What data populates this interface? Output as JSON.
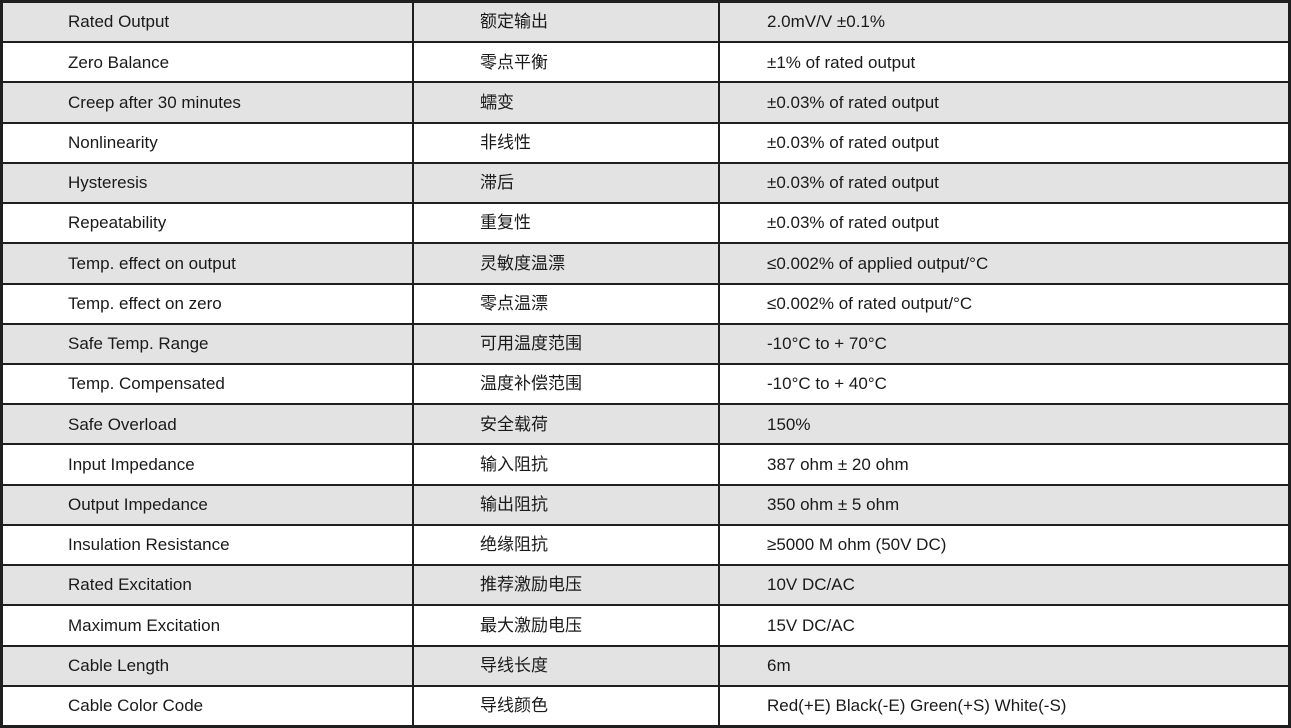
{
  "colors": {
    "row_alt": "#e3e3e3",
    "row_base": "#ffffff",
    "border": "#1f1f1f",
    "text": "#1a1a1a"
  },
  "table": {
    "rows": [
      {
        "en": "Rated Output",
        "zh": "额定输出",
        "value": "2.0mV/V ±0.1%"
      },
      {
        "en": "Zero Balance",
        "zh": "零点平衡",
        "value": "±1% of rated output"
      },
      {
        "en": "Creep after 30 minutes",
        "zh": "蠕变",
        "value": "±0.03% of rated output"
      },
      {
        "en": "Nonlinearity",
        "zh": "非线性",
        "value": "±0.03% of rated output"
      },
      {
        "en": "Hysteresis",
        "zh": "滞后",
        "value": "±0.03% of rated output"
      },
      {
        "en": "Repeatability",
        "zh": "重复性",
        "value": "±0.03% of rated output"
      },
      {
        "en": "Temp. effect on output",
        "zh": "灵敏度温漂",
        "value": "≤0.002% of applied output/°C"
      },
      {
        "en": "Temp. effect on zero",
        "zh": "零点温漂",
        "value": "≤0.002% of rated output/°C"
      },
      {
        "en": "Safe Temp. Range",
        "zh": "可用温度范围",
        "value": "-10°C to + 70°C"
      },
      {
        "en": "Temp. Compensated",
        "zh": "温度补偿范围",
        "value": "-10°C to + 40°C"
      },
      {
        "en": "Safe Overload",
        "zh": "安全载荷",
        "value": "150%"
      },
      {
        "en": "Input Impedance",
        "zh": "输入阻抗",
        "value": "387 ohm ± 20 ohm"
      },
      {
        "en": "Output Impedance",
        "zh": "输出阻抗",
        "value": "350 ohm ± 5 ohm"
      },
      {
        "en": "Insulation Resistance",
        "zh": "绝缘阻抗",
        "value": "≥5000 M ohm (50V DC)"
      },
      {
        "en": "Rated Excitation",
        "zh": "推荐激励电压",
        "value": "10V DC/AC"
      },
      {
        "en": "Maximum Excitation",
        "zh": "最大激励电压",
        "value": "15V DC/AC"
      },
      {
        "en": "Cable Length",
        "zh": "导线长度",
        "value": "6m"
      },
      {
        "en": "Cable Color Code",
        "zh": "导线颜色",
        "value": "Red(+E) Black(-E) Green(+S) White(-S)"
      }
    ]
  }
}
